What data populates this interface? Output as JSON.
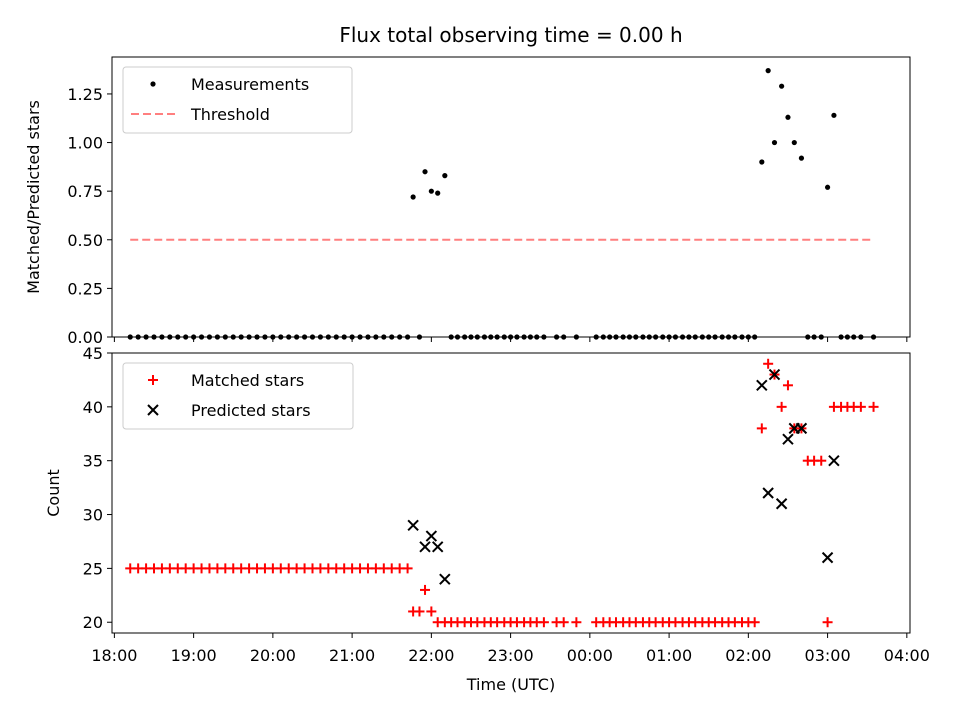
{
  "chart_data": {
    "title": "Flux total observing time = 0.00 h",
    "xlabel": "Time (UTC)",
    "x_ticks": [
      "18:00",
      "19:00",
      "20:00",
      "21:00",
      "22:00",
      "23:00",
      "00:00",
      "01:00",
      "02:00",
      "03:00",
      "04:00"
    ],
    "xlim_hours": [
      17.97,
      28.04
    ],
    "panels": [
      {
        "type": "scatter",
        "ylabel": "Matched/Predicted stars",
        "ylim": [
          0,
          1.44
        ],
        "y_ticks": [
          "0.00",
          "0.25",
          "0.50",
          "0.75",
          "1.00",
          "1.25"
        ],
        "y_tick_values": [
          0,
          0.25,
          0.5,
          0.75,
          1.0,
          1.25
        ],
        "legend": [
          "Measurements",
          "Threshold"
        ],
        "legend_placement": "upper left",
        "series": [
          {
            "name": "Measurements",
            "marker": "dot",
            "color": "#000000",
            "points": [
              [
                18.2,
                0
              ],
              [
                18.3,
                0
              ],
              [
                18.4,
                0
              ],
              [
                18.5,
                0
              ],
              [
                18.6,
                0
              ],
              [
                18.7,
                0
              ],
              [
                18.8,
                0
              ],
              [
                18.9,
                0
              ],
              [
                19.0,
                0
              ],
              [
                19.1,
                0
              ],
              [
                19.2,
                0
              ],
              [
                19.3,
                0
              ],
              [
                19.4,
                0
              ],
              [
                19.5,
                0
              ],
              [
                19.6,
                0
              ],
              [
                19.7,
                0
              ],
              [
                19.8,
                0
              ],
              [
                19.9,
                0
              ],
              [
                20.0,
                0
              ],
              [
                20.1,
                0
              ],
              [
                20.2,
                0
              ],
              [
                20.3,
                0
              ],
              [
                20.4,
                0
              ],
              [
                20.5,
                0
              ],
              [
                20.6,
                0
              ],
              [
                20.7,
                0
              ],
              [
                20.8,
                0
              ],
              [
                20.9,
                0
              ],
              [
                21.0,
                0
              ],
              [
                21.1,
                0
              ],
              [
                21.2,
                0
              ],
              [
                21.3,
                0
              ],
              [
                21.4,
                0
              ],
              [
                21.5,
                0
              ],
              [
                21.6,
                0
              ],
              [
                21.7,
                0
              ],
              [
                21.77,
                0.72
              ],
              [
                21.85,
                0
              ],
              [
                21.92,
                0.85
              ],
              [
                22.0,
                0.75
              ],
              [
                22.08,
                0.74
              ],
              [
                22.17,
                0.83
              ],
              [
                22.25,
                0
              ],
              [
                22.33,
                0
              ],
              [
                22.42,
                0
              ],
              [
                22.5,
                0
              ],
              [
                22.58,
                0
              ],
              [
                22.67,
                0
              ],
              [
                22.75,
                0
              ],
              [
                22.83,
                0
              ],
              [
                22.92,
                0
              ],
              [
                23.0,
                0
              ],
              [
                23.08,
                0
              ],
              [
                23.17,
                0
              ],
              [
                23.25,
                0
              ],
              [
                23.33,
                0
              ],
              [
                23.42,
                0
              ],
              [
                23.58,
                0
              ],
              [
                23.67,
                0
              ],
              [
                23.83,
                0
              ],
              [
                24.08,
                0
              ],
              [
                24.17,
                0
              ],
              [
                24.25,
                0
              ],
              [
                24.33,
                0
              ],
              [
                24.42,
                0
              ],
              [
                24.5,
                0
              ],
              [
                24.58,
                0
              ],
              [
                24.67,
                0
              ],
              [
                24.75,
                0
              ],
              [
                24.83,
                0
              ],
              [
                24.92,
                0
              ],
              [
                25.0,
                0
              ],
              [
                25.08,
                0
              ],
              [
                25.17,
                0
              ],
              [
                25.25,
                0
              ],
              [
                25.33,
                0
              ],
              [
                25.42,
                0
              ],
              [
                25.5,
                0
              ],
              [
                25.58,
                0
              ],
              [
                25.67,
                0
              ],
              [
                25.75,
                0
              ],
              [
                25.83,
                0
              ],
              [
                25.92,
                0
              ],
              [
                26.0,
                0
              ],
              [
                26.08,
                0
              ],
              [
                26.17,
                0.9
              ],
              [
                26.25,
                1.37
              ],
              [
                26.33,
                1.0
              ],
              [
                26.42,
                1.29
              ],
              [
                26.5,
                1.13
              ],
              [
                26.58,
                1.0
              ],
              [
                26.67,
                0.92
              ],
              [
                26.75,
                0
              ],
              [
                26.83,
                0
              ],
              [
                26.92,
                0
              ],
              [
                27.0,
                0.77
              ],
              [
                27.08,
                1.14
              ],
              [
                27.17,
                0
              ],
              [
                27.25,
                0
              ],
              [
                27.33,
                0
              ],
              [
                27.42,
                0
              ],
              [
                27.58,
                0
              ]
            ]
          },
          {
            "name": "Threshold",
            "marker": "dashed-line",
            "color": "#ff7f7f",
            "points": [
              [
                18.2,
                0.5
              ],
              [
                27.58,
                0.5
              ]
            ]
          }
        ]
      },
      {
        "type": "scatter",
        "ylabel": "Count",
        "ylim": [
          19,
          45
        ],
        "y_ticks": [
          "20",
          "25",
          "30",
          "35",
          "40",
          "45"
        ],
        "y_tick_values": [
          20,
          25,
          30,
          35,
          40,
          45
        ],
        "legend": [
          "Matched stars",
          "Predicted stars"
        ],
        "legend_placement": "upper left",
        "series": [
          {
            "name": "Matched stars",
            "marker": "plus",
            "color": "#ff0000",
            "points": [
              [
                18.2,
                25
              ],
              [
                18.3,
                25
              ],
              [
                18.4,
                25
              ],
              [
                18.5,
                25
              ],
              [
                18.6,
                25
              ],
              [
                18.7,
                25
              ],
              [
                18.8,
                25
              ],
              [
                18.9,
                25
              ],
              [
                19.0,
                25
              ],
              [
                19.1,
                25
              ],
              [
                19.2,
                25
              ],
              [
                19.3,
                25
              ],
              [
                19.4,
                25
              ],
              [
                19.5,
                25
              ],
              [
                19.6,
                25
              ],
              [
                19.7,
                25
              ],
              [
                19.8,
                25
              ],
              [
                19.9,
                25
              ],
              [
                20.0,
                25
              ],
              [
                20.1,
                25
              ],
              [
                20.2,
                25
              ],
              [
                20.3,
                25
              ],
              [
                20.4,
                25
              ],
              [
                20.5,
                25
              ],
              [
                20.6,
                25
              ],
              [
                20.7,
                25
              ],
              [
                20.8,
                25
              ],
              [
                20.9,
                25
              ],
              [
                21.0,
                25
              ],
              [
                21.1,
                25
              ],
              [
                21.2,
                25
              ],
              [
                21.3,
                25
              ],
              [
                21.4,
                25
              ],
              [
                21.5,
                25
              ],
              [
                21.6,
                25
              ],
              [
                21.7,
                25
              ],
              [
                21.77,
                21
              ],
              [
                21.85,
                21
              ],
              [
                21.92,
                23
              ],
              [
                22.0,
                21
              ],
              [
                22.08,
                20
              ],
              [
                22.17,
                20
              ],
              [
                22.25,
                20
              ],
              [
                22.33,
                20
              ],
              [
                22.42,
                20
              ],
              [
                22.5,
                20
              ],
              [
                22.58,
                20
              ],
              [
                22.67,
                20
              ],
              [
                22.75,
                20
              ],
              [
                22.83,
                20
              ],
              [
                22.92,
                20
              ],
              [
                23.0,
                20
              ],
              [
                23.08,
                20
              ],
              [
                23.17,
                20
              ],
              [
                23.25,
                20
              ],
              [
                23.33,
                20
              ],
              [
                23.42,
                20
              ],
              [
                23.58,
                20
              ],
              [
                23.67,
                20
              ],
              [
                23.83,
                20
              ],
              [
                24.08,
                20
              ],
              [
                24.17,
                20
              ],
              [
                24.25,
                20
              ],
              [
                24.33,
                20
              ],
              [
                24.42,
                20
              ],
              [
                24.5,
                20
              ],
              [
                24.58,
                20
              ],
              [
                24.67,
                20
              ],
              [
                24.75,
                20
              ],
              [
                24.83,
                20
              ],
              [
                24.92,
                20
              ],
              [
                25.0,
                20
              ],
              [
                25.08,
                20
              ],
              [
                25.17,
                20
              ],
              [
                25.25,
                20
              ],
              [
                25.33,
                20
              ],
              [
                25.42,
                20
              ],
              [
                25.5,
                20
              ],
              [
                25.58,
                20
              ],
              [
                25.67,
                20
              ],
              [
                25.75,
                20
              ],
              [
                25.83,
                20
              ],
              [
                25.92,
                20
              ],
              [
                26.0,
                20
              ],
              [
                26.08,
                20
              ],
              [
                26.17,
                38
              ],
              [
                26.25,
                44
              ],
              [
                26.33,
                43
              ],
              [
                26.42,
                40
              ],
              [
                26.5,
                42
              ],
              [
                26.58,
                38
              ],
              [
                26.67,
                38
              ],
              [
                26.75,
                35
              ],
              [
                26.83,
                35
              ],
              [
                26.92,
                35
              ],
              [
                27.0,
                20
              ],
              [
                27.08,
                40
              ],
              [
                27.17,
                40
              ],
              [
                27.25,
                40
              ],
              [
                27.33,
                40
              ],
              [
                27.42,
                40
              ],
              [
                27.58,
                40
              ]
            ]
          },
          {
            "name": "Predicted stars",
            "marker": "x",
            "color": "#000000",
            "points": [
              [
                21.77,
                29
              ],
              [
                21.92,
                27
              ],
              [
                22.0,
                28
              ],
              [
                22.08,
                27
              ],
              [
                22.17,
                24
              ],
              [
                26.17,
                42
              ],
              [
                26.25,
                32
              ],
              [
                26.33,
                43
              ],
              [
                26.42,
                31
              ],
              [
                26.5,
                37
              ],
              [
                26.58,
                38
              ],
              [
                26.67,
                38
              ],
              [
                27.0,
                26
              ],
              [
                27.08,
                35
              ]
            ]
          }
        ]
      }
    ]
  }
}
